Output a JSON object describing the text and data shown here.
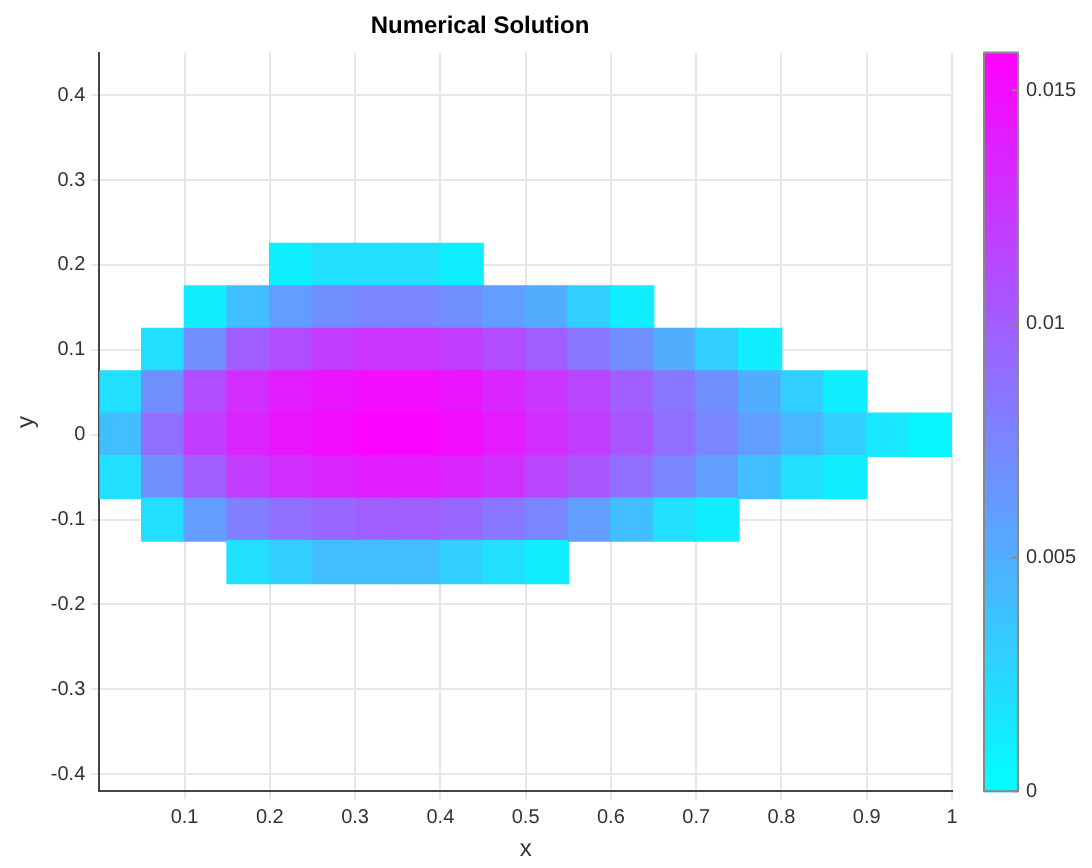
{
  "chart_data": {
    "type": "scatter",
    "title": "Numerical Solution",
    "xlabel": "x",
    "ylabel": "y",
    "marker": "square",
    "grid": true,
    "xlim": [
      0,
      1
    ],
    "xticks": [
      0.1,
      0.2,
      0.3,
      0.4,
      0.5,
      0.6,
      0.7,
      0.8,
      0.9,
      1
    ],
    "ylim": [
      -0.42,
      0.45
    ],
    "yticks": [
      -0.4,
      -0.3,
      -0.2,
      -0.1,
      0,
      0.1,
      0.2,
      0.3,
      0.4
    ],
    "clim": [
      0,
      0.0158
    ],
    "cticks": [
      0,
      0.005,
      0.01,
      0.015
    ],
    "x": [
      0.025,
      0.025,
      0.025,
      0.075,
      0.075,
      0.075,
      0.075,
      0.075,
      0.125,
      0.125,
      0.125,
      0.125,
      0.125,
      0.125,
      0.175,
      0.175,
      0.175,
      0.175,
      0.175,
      0.175,
      0.175,
      0.225,
      0.225,
      0.225,
      0.225,
      0.225,
      0.225,
      0.225,
      0.225,
      0.275,
      0.275,
      0.275,
      0.275,
      0.275,
      0.275,
      0.275,
      0.275,
      0.325,
      0.325,
      0.325,
      0.325,
      0.325,
      0.325,
      0.325,
      0.325,
      0.375,
      0.375,
      0.375,
      0.375,
      0.375,
      0.375,
      0.375,
      0.375,
      0.425,
      0.425,
      0.425,
      0.425,
      0.425,
      0.425,
      0.425,
      0.425,
      0.475,
      0.475,
      0.475,
      0.475,
      0.475,
      0.475,
      0.475,
      0.525,
      0.525,
      0.525,
      0.525,
      0.525,
      0.525,
      0.525,
      0.575,
      0.575,
      0.575,
      0.575,
      0.575,
      0.575,
      0.625,
      0.625,
      0.625,
      0.625,
      0.625,
      0.625,
      0.675,
      0.675,
      0.675,
      0.675,
      0.675,
      0.725,
      0.725,
      0.725,
      0.725,
      0.725,
      0.775,
      0.775,
      0.775,
      0.775,
      0.825,
      0.825,
      0.825,
      0.875,
      0.875,
      0.875,
      0.925,
      0.975
    ],
    "values": [
      0.05,
      0,
      -0.05,
      0.1,
      0.05,
      0,
      -0.05,
      -0.1,
      0.15,
      0.1,
      0.05,
      0,
      -0.05,
      -0.1,
      0.15,
      0.1,
      0.05,
      0,
      -0.05,
      -0.1,
      -0.15,
      0.2,
      0.15,
      0.1,
      0.05,
      0,
      -0.05,
      -0.1,
      -0.15,
      0.2,
      0.15,
      0.1,
      0.05,
      0,
      -0.05,
      -0.1,
      -0.15,
      0.2,
      0.15,
      0.1,
      0.05,
      0,
      -0.05,
      -0.1,
      -0.15,
      0.2,
      0.15,
      0.1,
      0.05,
      0,
      -0.05,
      -0.1,
      -0.15,
      0.2,
      0.15,
      0.1,
      0.05,
      0,
      -0.05,
      -0.1,
      -0.15,
      0.15,
      0.1,
      0.05,
      0,
      -0.05,
      -0.1,
      -0.15,
      0.15,
      0.1,
      0.05,
      0,
      -0.05,
      -0.1,
      -0.15,
      0.15,
      0.1,
      0.05,
      0,
      -0.05,
      -0.1,
      0.15,
      0.1,
      0.05,
      0,
      -0.05,
      -0.1,
      0.1,
      0.05,
      0,
      -0.05,
      -0.1,
      0.1,
      0.05,
      0,
      -0.05,
      -0.1,
      0.1,
      0.05,
      0,
      -0.05,
      0.05,
      0,
      -0.05,
      0.05,
      0,
      -0.05,
      0,
      0
    ],
    "cvalues": [
      0.002,
      0.004,
      0.002,
      0.002,
      0.007,
      0.009,
      0.007,
      0.002,
      0.001,
      0.007,
      0.011,
      0.012,
      0.01,
      0.006,
      0.004,
      0.01,
      0.013,
      0.0135,
      0.012,
      0.008,
      0.002,
      0.001,
      0.006,
      0.011,
      0.014,
      0.0145,
      0.013,
      0.009,
      0.003,
      0.002,
      0.007,
      0.012,
      0.0145,
      0.015,
      0.0135,
      0.0095,
      0.004,
      0.002,
      0.0075,
      0.0125,
      0.015,
      0.0155,
      0.014,
      0.01,
      0.004,
      0.002,
      0.0075,
      0.0125,
      0.015,
      0.0155,
      0.014,
      0.01,
      0.004,
      0.001,
      0.007,
      0.012,
      0.0145,
      0.015,
      0.0135,
      0.0095,
      0.003,
      0.006,
      0.011,
      0.0135,
      0.0142,
      0.0128,
      0.0085,
      0.002,
      0.005,
      0.01,
      0.0125,
      0.013,
      0.0115,
      0.0075,
      0.001,
      0.003,
      0.0085,
      0.0115,
      0.012,
      0.0105,
      0.006,
      0.001,
      0.007,
      0.01,
      0.0105,
      0.009,
      0.004,
      0.005,
      0.0085,
      0.009,
      0.0075,
      0.002,
      0.003,
      0.007,
      0.0075,
      0.006,
      0.001,
      0.001,
      0.005,
      0.006,
      0.004,
      0.003,
      0.0045,
      0.002,
      0.001,
      0.003,
      0.001,
      0.0015,
      0.0005
    ]
  }
}
